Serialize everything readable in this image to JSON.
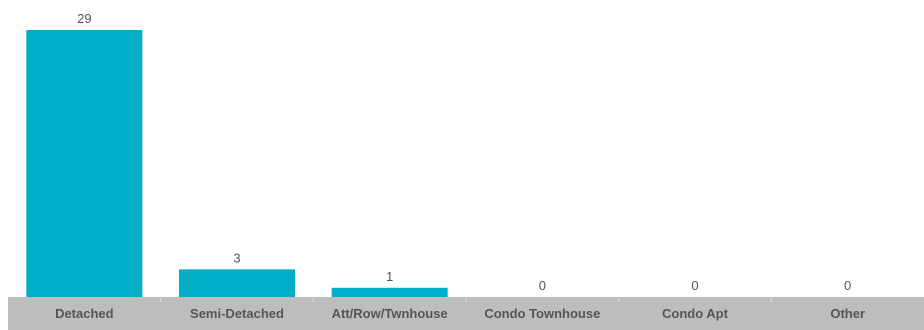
{
  "chart_data": {
    "type": "bar",
    "categories": [
      "Detached",
      "Semi-Detached",
      "Att/Row/Twnhouse",
      "Condo Townhouse",
      "Condo Apt",
      "Other"
    ],
    "values": [
      29,
      3,
      1,
      0,
      0,
      0
    ],
    "data_labels": [
      "29",
      "3",
      "1",
      "0",
      "0",
      "0"
    ],
    "ylim": [
      0,
      29
    ],
    "grid": false,
    "legend": "none",
    "colors": {
      "bar": "#00AEC7",
      "axis_band": "#BDBDBD",
      "label": "#555555",
      "divider": "#E0E0E0"
    }
  }
}
